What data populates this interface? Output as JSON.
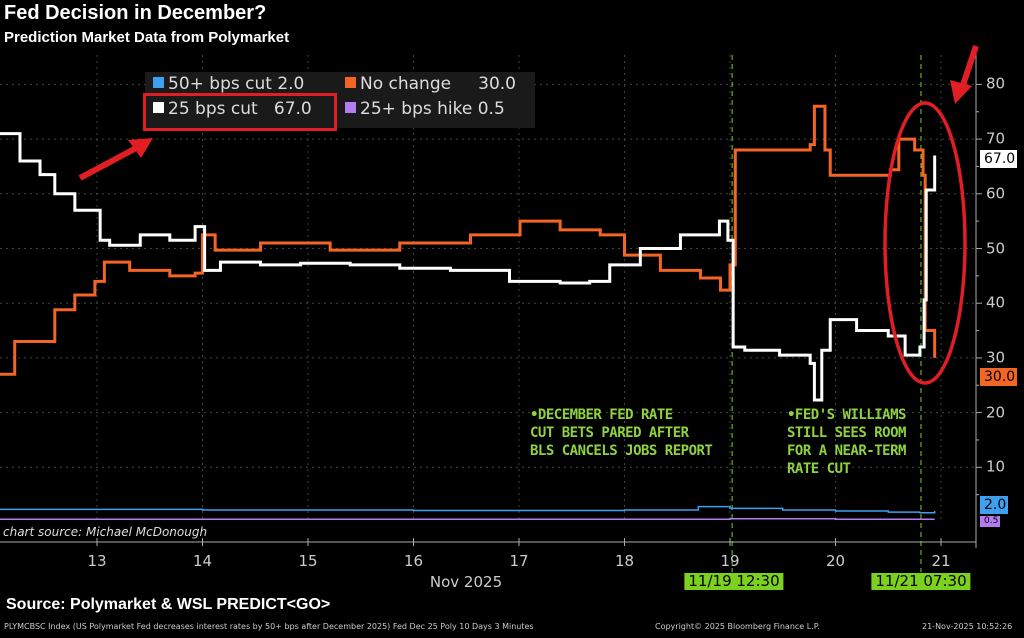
{
  "header": {
    "title": "Fed Decision in December?",
    "subtitle": "Prediction Market Data from Polymarket"
  },
  "legend": [
    {
      "label": "50+ bps cut",
      "value": "2.0",
      "color": "#3ea0f0"
    },
    {
      "label": "No change",
      "value": "30.0",
      "color": "#f26522"
    },
    {
      "label": "25 bps cut",
      "value": "67.0",
      "color": "#ffffff"
    },
    {
      "label": "25+ bps hike",
      "value": "0.5",
      "color": "#b57cf2"
    }
  ],
  "annotations": {
    "note1": [
      "•DECEMBER FED RATE",
      "CUT BETS PARED AFTER",
      "BLS CANCELS JOBS REPORT"
    ],
    "note2": [
      "•FED'S WILLIAMS",
      "STILL SEES ROOM",
      "FOR A NEAR-TERM",
      "RATE CUT"
    ],
    "event1": "11/19 12:30",
    "event2": "11/21 07:30",
    "credit": "chart source: Michael McDonough"
  },
  "footer": {
    "source": "Source: Polymarket & WSL PREDICT<GO>",
    "description": "PLYMCBSC Index (US Polymarket Fed decreases interest rates by 50+ bps after December 2025) Fed Dec 25 Poly 10 Days 3 Minutes",
    "copyright": "Copyright© 2025 Bloomberg Finance L.P.",
    "timestamp": "21-Nov-2025 10:52:26"
  },
  "chart_data": {
    "type": "line",
    "title": "Fed Decision in December?",
    "subtitle": "Prediction Market Data from Polymarket",
    "xlabel": "Nov 2025",
    "x_ticks": [
      "13",
      "14",
      "15",
      "16",
      "17",
      "18",
      "19",
      "20",
      "21"
    ],
    "y_ticks": [
      "10",
      "20",
      "30",
      "40",
      "50",
      "60",
      "70",
      "80"
    ],
    "ylim": [
      0,
      85
    ],
    "xlim": [
      12.08,
      21.33
    ],
    "y_axis_side": "right",
    "grid": true,
    "legend_placement": "top-left",
    "event_lines": [
      19.02,
      20.81
    ],
    "last_values": {
      "25 bps cut": "67.0",
      "No change": "30.0",
      "50+ bps cut": "2.0",
      "25+ bps hike": "0.5"
    },
    "series": [
      {
        "name": "25 bps cut",
        "color": "#ffffff",
        "x": [
          12.08,
          12.27,
          12.46,
          12.6,
          12.79,
          13.03,
          13.12,
          13.41,
          13.69,
          13.93,
          14.02,
          14.17,
          14.55,
          14.93,
          15.4,
          15.87,
          16.35,
          16.91,
          17.39,
          17.67,
          17.86,
          18.15,
          18.53,
          18.9,
          18.98,
          19.03,
          19.14,
          19.47,
          19.76,
          19.8,
          19.87,
          19.95,
          20.2,
          20.5,
          20.66,
          20.8,
          20.84,
          20.86,
          20.94
        ],
        "y": [
          71,
          66,
          63.5,
          60,
          57,
          51.5,
          50.6,
          52.5,
          51.5,
          54,
          46,
          47.5,
          47,
          47.3,
          47,
          46.4,
          46,
          44,
          43.7,
          44,
          47,
          50,
          52.5,
          55,
          51.5,
          32,
          31.4,
          30.5,
          29,
          22.3,
          31.4,
          37,
          35,
          34,
          30.5,
          32,
          40.6,
          60.7,
          67
        ]
      },
      {
        "name": "No change",
        "color": "#f26522",
        "x": [
          12.08,
          12.22,
          12.46,
          12.6,
          12.79,
          12.98,
          13.07,
          13.31,
          13.69,
          13.93,
          14.0,
          14.12,
          14.55,
          15.21,
          15.87,
          16.54,
          17.01,
          17.39,
          17.77,
          18.0,
          18.34,
          18.72,
          18.91,
          19.0,
          19.05,
          19.38,
          19.76,
          19.8,
          19.9,
          19.95,
          20.23,
          20.52,
          20.6,
          20.75,
          20.83,
          20.85,
          20.94
        ],
        "y": [
          27,
          33,
          33,
          38.8,
          41.5,
          44,
          47.5,
          46,
          45,
          45.5,
          52.5,
          49.7,
          51,
          49.7,
          51,
          52.5,
          55,
          53.4,
          52.5,
          48.8,
          46,
          44.6,
          42.4,
          47,
          68,
          68,
          69,
          76,
          68,
          63.4,
          63.4,
          64.4,
          70,
          68,
          63.4,
          35,
          30
        ]
      },
      {
        "name": "50+ bps cut",
        "color": "#3ea0f0",
        "x": [
          12.08,
          13,
          14,
          15,
          16,
          17,
          18,
          18.7,
          19,
          19.5,
          20,
          20.5,
          20.8,
          20.94
        ],
        "y": [
          2.3,
          2.3,
          2.2,
          2.2,
          2.1,
          2.1,
          2.2,
          2.8,
          2.5,
          2.2,
          2,
          1.8,
          1.7,
          2.0
        ]
      },
      {
        "name": "25+ bps hike",
        "color": "#b57cf2",
        "x": [
          12.08,
          14,
          16,
          18,
          19,
          20,
          20.94
        ],
        "y": [
          0.5,
          0.5,
          0.5,
          0.5,
          0.6,
          0.5,
          0.5
        ]
      }
    ]
  }
}
